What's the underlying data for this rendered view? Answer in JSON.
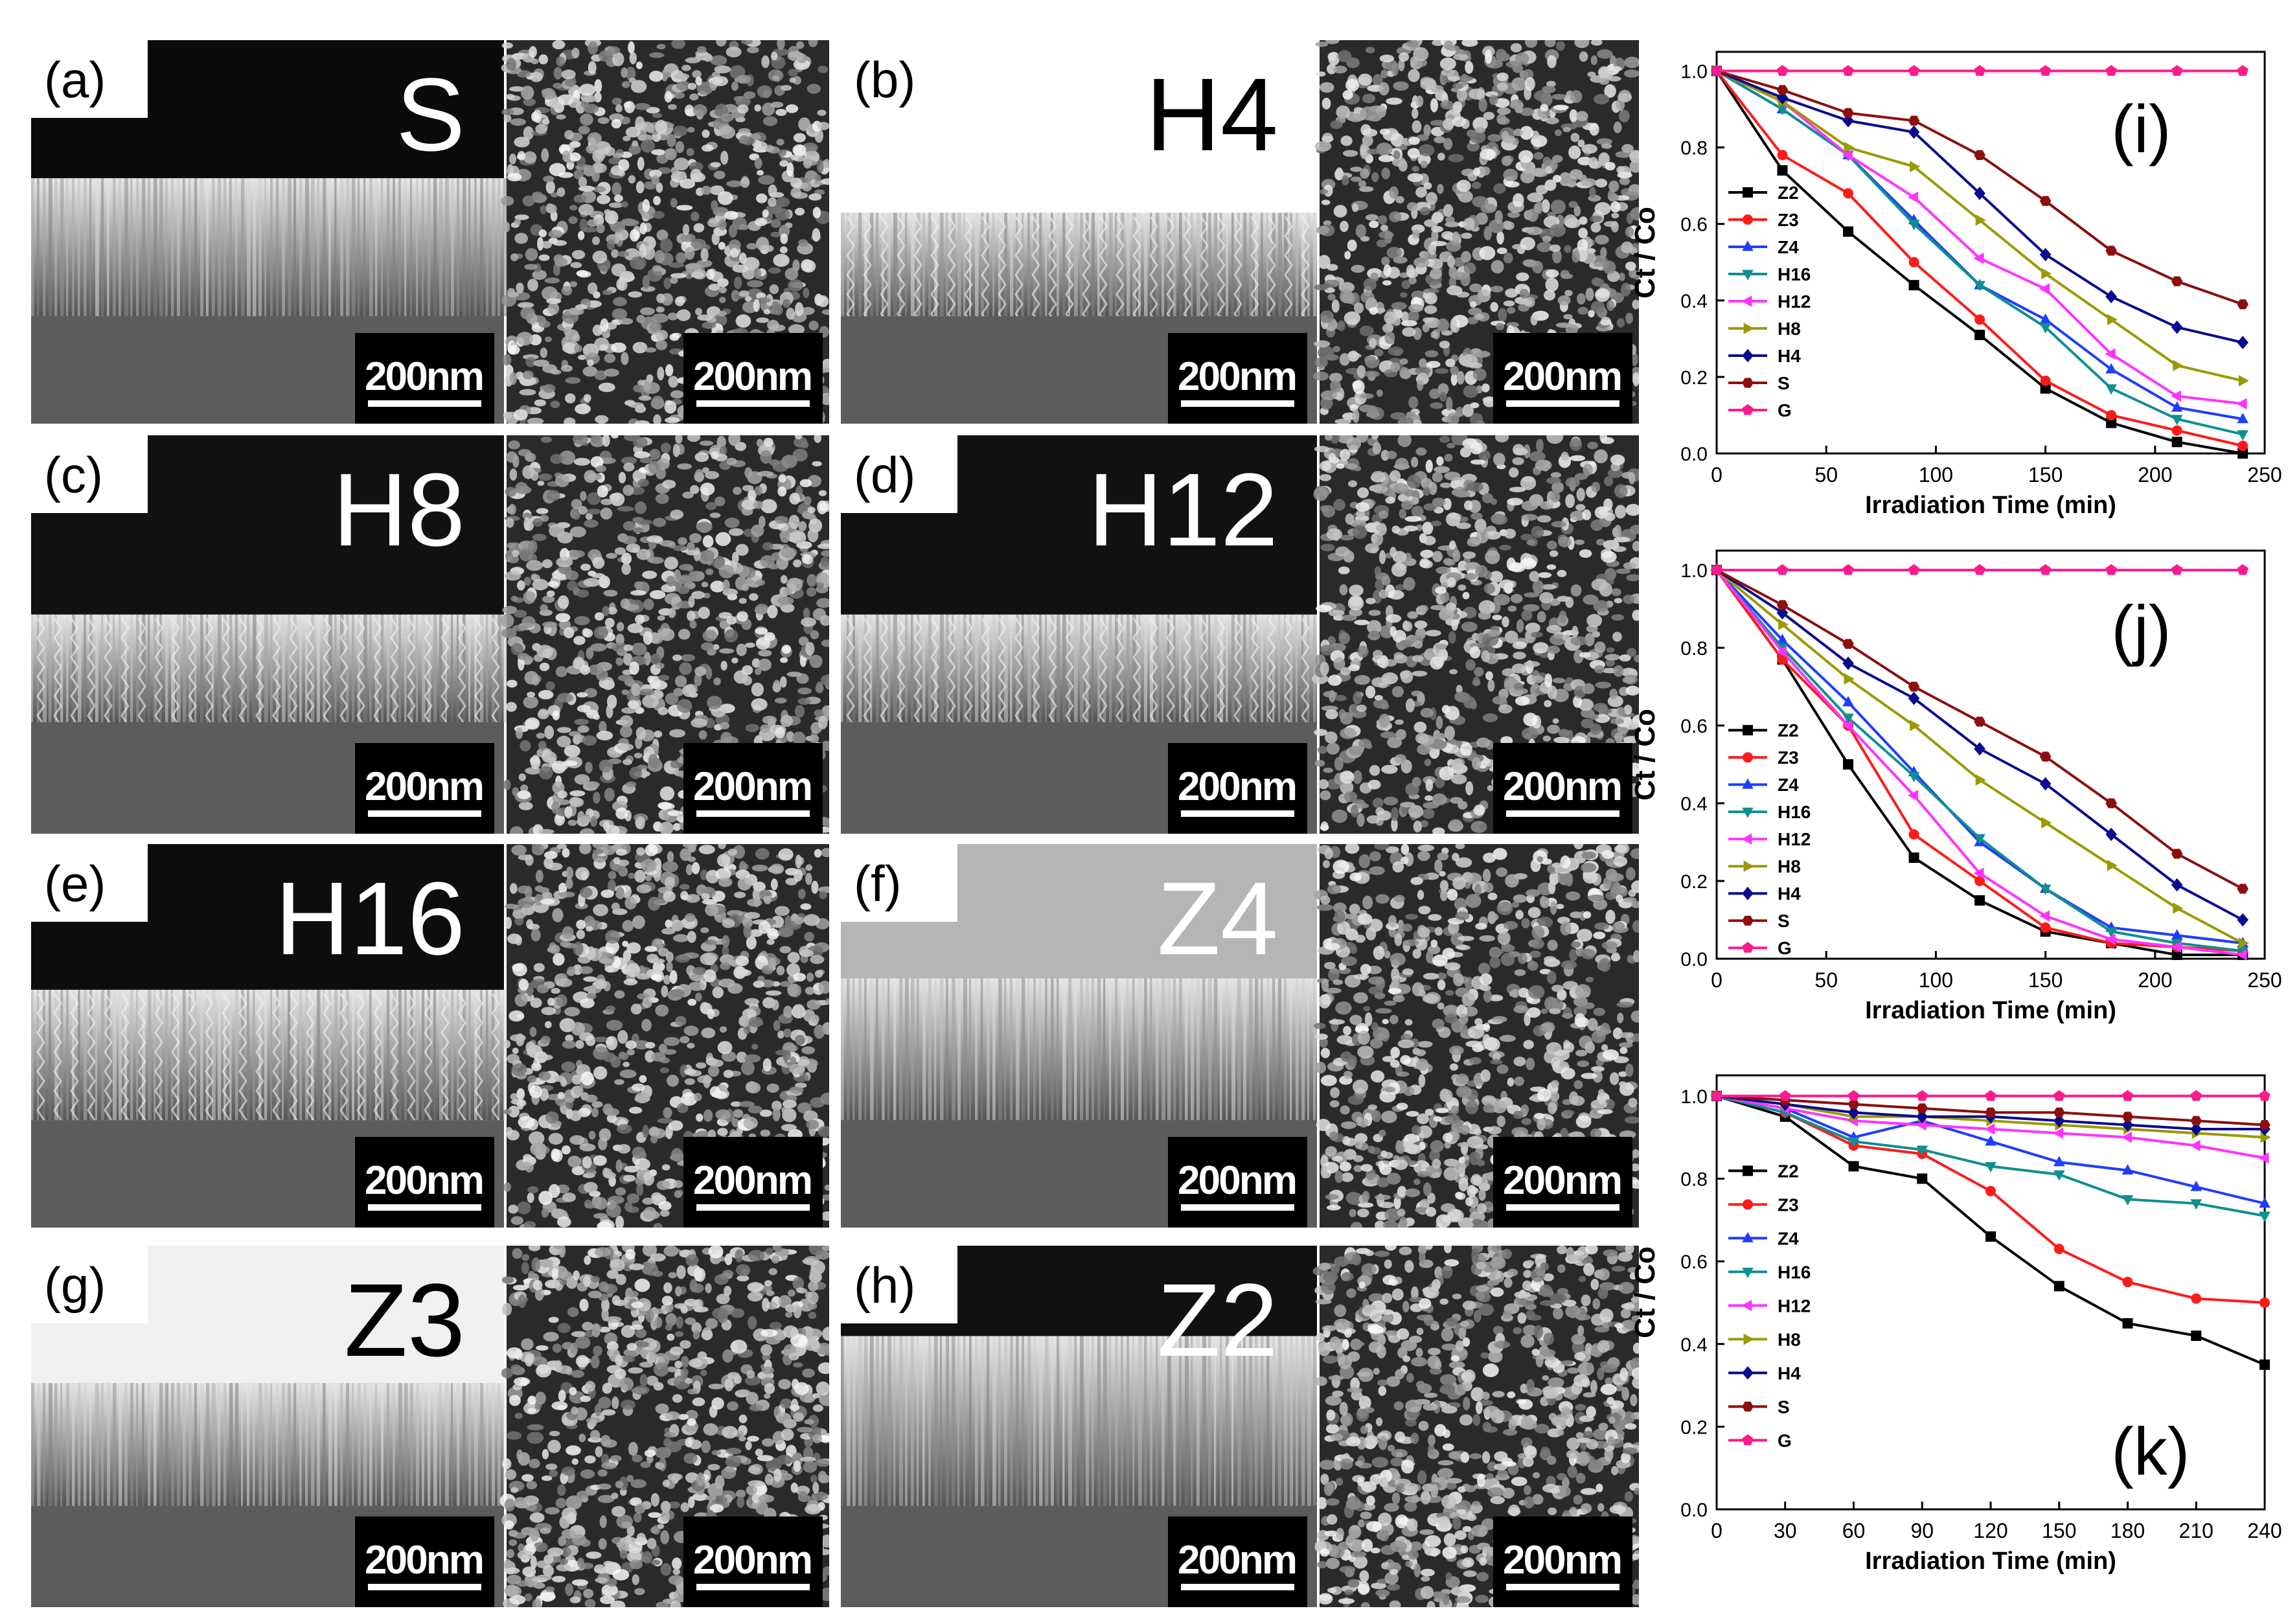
{
  "sem_panels": [
    {
      "id": "a",
      "letter": "(a)",
      "sample": "S",
      "scale_cross": "200nm",
      "scale_top": "200nm"
    },
    {
      "id": "b",
      "letter": "(b)",
      "sample": "H4",
      "scale_cross": "200nm",
      "scale_top": "200nm"
    },
    {
      "id": "c",
      "letter": "(c)",
      "sample": "H8",
      "scale_cross": "200nm",
      "scale_top": "200nm"
    },
    {
      "id": "d",
      "letter": "(d)",
      "sample": "H12",
      "scale_cross": "200nm",
      "scale_top": "200nm"
    },
    {
      "id": "e",
      "letter": "(e)",
      "sample": "H16",
      "scale_cross": "200nm",
      "scale_top": "200nm"
    },
    {
      "id": "f",
      "letter": "(f)",
      "sample": "Z4",
      "scale_cross": "200nm",
      "scale_top": "200nm"
    },
    {
      "id": "g",
      "letter": "(g)",
      "sample": "Z3",
      "scale_cross": "200nm",
      "scale_top": "200nm"
    },
    {
      "id": "h",
      "letter": "(h)",
      "sample": "Z2",
      "scale_cross": "200nm",
      "scale_top": "200nm"
    }
  ],
  "colors": {
    "Z2": "#000000",
    "Z3": "#ff1a1a",
    "Z4": "#1f3dff",
    "H16": "#0f8f8f",
    "H12": "#ff33ff",
    "H8": "#9a9a00",
    "H4": "#0a0a8f",
    "S": "#8b0f0f",
    "G": "#ff1a8c"
  },
  "chart_data": [
    {
      "panel": "(i)",
      "type": "line",
      "xlabel": "Irradiation Time (min)",
      "ylabel": "Ct / Co",
      "xlim": [
        0,
        250
      ],
      "ylim": [
        0,
        1.05
      ],
      "xticks": [
        "0",
        "50",
        "100",
        "150",
        "200",
        "250"
      ],
      "yticks": [
        "0.0",
        "0.2",
        "0.4",
        "0.6",
        "0.8",
        "1.0"
      ],
      "legend_position": "left",
      "x": [
        0,
        30,
        60,
        90,
        120,
        150,
        180,
        210,
        240
      ],
      "series": [
        {
          "name": "Z2",
          "marker": "square",
          "values": [
            1.0,
            0.74,
            0.58,
            0.44,
            0.31,
            0.17,
            0.08,
            0.03,
            0.0
          ]
        },
        {
          "name": "Z3",
          "marker": "circle",
          "values": [
            1.0,
            0.78,
            0.68,
            0.5,
            0.35,
            0.19,
            0.1,
            0.06,
            0.02
          ]
        },
        {
          "name": "Z4",
          "marker": "triangle-up",
          "values": [
            1.0,
            0.9,
            0.78,
            0.61,
            0.44,
            0.35,
            0.22,
            0.12,
            0.09
          ]
        },
        {
          "name": "H16",
          "marker": "triangle-down",
          "values": [
            1.0,
            0.9,
            0.78,
            0.6,
            0.44,
            0.33,
            0.17,
            0.09,
            0.05
          ]
        },
        {
          "name": "H12",
          "marker": "triangle-left",
          "values": [
            1.0,
            0.92,
            0.78,
            0.67,
            0.51,
            0.43,
            0.26,
            0.15,
            0.13
          ]
        },
        {
          "name": "H8",
          "marker": "triangle-right",
          "values": [
            1.0,
            0.92,
            0.8,
            0.75,
            0.61,
            0.47,
            0.35,
            0.23,
            0.19
          ]
        },
        {
          "name": "H4",
          "marker": "diamond",
          "values": [
            1.0,
            0.93,
            0.87,
            0.84,
            0.68,
            0.52,
            0.41,
            0.33,
            0.29
          ]
        },
        {
          "name": "S",
          "marker": "hexagon",
          "values": [
            1.0,
            0.95,
            0.89,
            0.87,
            0.78,
            0.66,
            0.53,
            0.45,
            0.39
          ]
        },
        {
          "name": "G",
          "marker": "pentagon",
          "values": [
            1.0,
            1.0,
            1.0,
            1.0,
            1.0,
            1.0,
            1.0,
            1.0,
            1.0
          ]
        }
      ]
    },
    {
      "panel": "(j)",
      "type": "line",
      "xlabel": "Irradiation Time (min)",
      "ylabel": "Ct / Co",
      "xlim": [
        0,
        250
      ],
      "ylim": [
        0,
        1.05
      ],
      "xticks": [
        "0",
        "50",
        "100",
        "150",
        "200",
        "250"
      ],
      "yticks": [
        "0.0",
        "0.2",
        "0.4",
        "0.6",
        "0.8",
        "1.0"
      ],
      "legend_position": "left",
      "x": [
        0,
        30,
        60,
        90,
        120,
        150,
        180,
        210,
        240
      ],
      "series": [
        {
          "name": "Z2",
          "marker": "square",
          "values": [
            1.0,
            0.77,
            0.5,
            0.26,
            0.15,
            0.07,
            0.04,
            0.01,
            0.01
          ]
        },
        {
          "name": "Z3",
          "marker": "circle",
          "values": [
            1.0,
            0.77,
            0.6,
            0.32,
            0.2,
            0.08,
            0.04,
            0.03,
            0.02
          ]
        },
        {
          "name": "Z4",
          "marker": "triangle-up",
          "values": [
            1.0,
            0.82,
            0.66,
            0.48,
            0.3,
            0.18,
            0.08,
            0.06,
            0.04
          ]
        },
        {
          "name": "H16",
          "marker": "triangle-down",
          "values": [
            1.0,
            0.8,
            0.62,
            0.47,
            0.31,
            0.18,
            0.07,
            0.04,
            0.02
          ]
        },
        {
          "name": "H12",
          "marker": "triangle-left",
          "values": [
            1.0,
            0.79,
            0.6,
            0.42,
            0.22,
            0.11,
            0.05,
            0.03,
            0.01
          ]
        },
        {
          "name": "H8",
          "marker": "triangle-right",
          "values": [
            1.0,
            0.86,
            0.72,
            0.6,
            0.46,
            0.35,
            0.24,
            0.13,
            0.04
          ]
        },
        {
          "name": "H4",
          "marker": "diamond",
          "values": [
            1.0,
            0.89,
            0.76,
            0.67,
            0.54,
            0.45,
            0.32,
            0.19,
            0.1
          ]
        },
        {
          "name": "S",
          "marker": "hexagon",
          "values": [
            1.0,
            0.91,
            0.81,
            0.7,
            0.61,
            0.52,
            0.4,
            0.27,
            0.18
          ]
        },
        {
          "name": "G",
          "marker": "pentagon",
          "values": [
            1.0,
            1.0,
            1.0,
            1.0,
            1.0,
            1.0,
            1.0,
            1.0,
            1.0
          ]
        }
      ]
    },
    {
      "panel": "(k)",
      "type": "line",
      "xlabel": "Irradiation Time (min)",
      "ylabel": "Ct / Co",
      "xlim": [
        0,
        240
      ],
      "ylim": [
        0,
        1.05
      ],
      "xticks": [
        "0",
        "30",
        "60",
        "90",
        "120",
        "150",
        "180",
        "210",
        "240"
      ],
      "yticks": [
        "0.0",
        "0.2",
        "0.4",
        "0.6",
        "0.8",
        "1.0"
      ],
      "legend_position": "left",
      "x": [
        0,
        30,
        60,
        90,
        120,
        150,
        180,
        210,
        240
      ],
      "series": [
        {
          "name": "Z2",
          "marker": "square",
          "values": [
            1.0,
            0.95,
            0.83,
            0.8,
            0.66,
            0.54,
            0.45,
            0.42,
            0.35
          ]
        },
        {
          "name": "Z3",
          "marker": "circle",
          "values": [
            1.0,
            0.96,
            0.88,
            0.86,
            0.77,
            0.63,
            0.55,
            0.51,
            0.5
          ]
        },
        {
          "name": "Z4",
          "marker": "triangle-up",
          "values": [
            1.0,
            0.97,
            0.9,
            0.94,
            0.89,
            0.84,
            0.82,
            0.78,
            0.74
          ]
        },
        {
          "name": "H16",
          "marker": "triangle-down",
          "values": [
            1.0,
            0.96,
            0.89,
            0.87,
            0.83,
            0.81,
            0.75,
            0.74,
            0.71
          ]
        },
        {
          "name": "H12",
          "marker": "triangle-left",
          "values": [
            1.0,
            0.97,
            0.94,
            0.93,
            0.92,
            0.91,
            0.9,
            0.88,
            0.85
          ]
        },
        {
          "name": "H8",
          "marker": "triangle-right",
          "values": [
            1.0,
            0.98,
            0.95,
            0.95,
            0.94,
            0.93,
            0.92,
            0.91,
            0.9
          ]
        },
        {
          "name": "H4",
          "marker": "diamond",
          "values": [
            1.0,
            0.98,
            0.96,
            0.95,
            0.95,
            0.94,
            0.93,
            0.92,
            0.92
          ]
        },
        {
          "name": "S",
          "marker": "hexagon",
          "values": [
            1.0,
            0.99,
            0.98,
            0.97,
            0.96,
            0.96,
            0.95,
            0.94,
            0.93
          ]
        },
        {
          "name": "G",
          "marker": "pentagon",
          "values": [
            1.0,
            1.0,
            1.0,
            1.0,
            1.0,
            1.0,
            1.0,
            1.0,
            1.0
          ]
        }
      ]
    }
  ]
}
